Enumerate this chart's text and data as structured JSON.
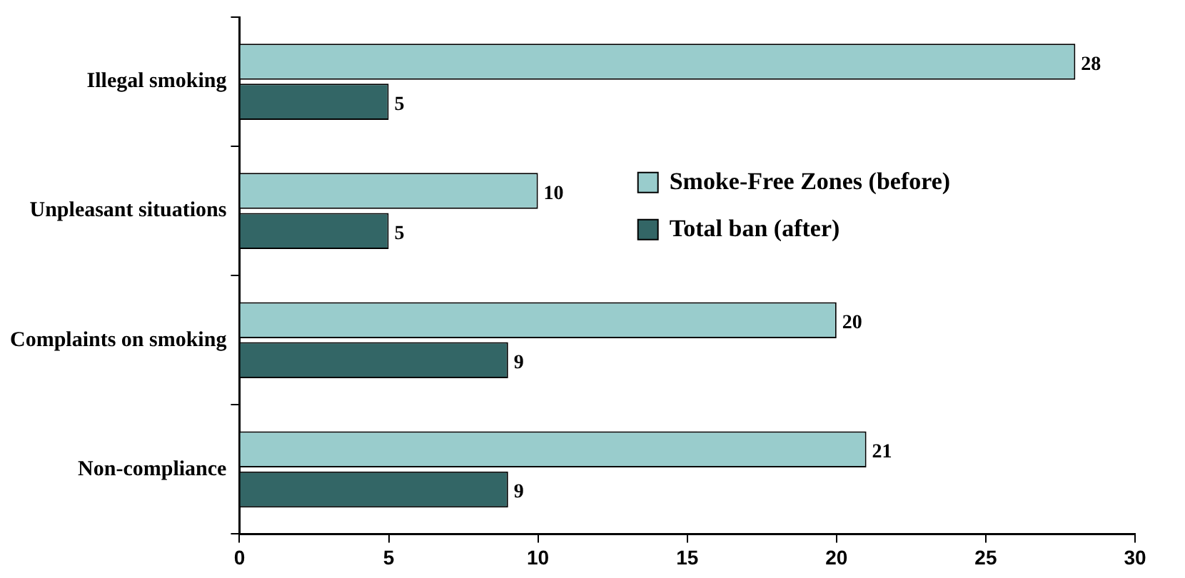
{
  "chart_data": {
    "type": "bar",
    "orientation": "horizontal",
    "categories": [
      "Illegal smoking",
      "Unpleasant situations",
      "Complaints on smoking",
      "Non-compliance"
    ],
    "series": [
      {
        "name": "Smoke-Free Zones (before)",
        "color": "#99cccc",
        "values": [
          28,
          10,
          20,
          21
        ]
      },
      {
        "name": "Total ban (after)",
        "color": "#336666",
        "values": [
          5,
          5,
          9,
          9
        ]
      }
    ],
    "xlim": [
      0,
      30
    ],
    "xticks": [
      0,
      5,
      10,
      15,
      20,
      25,
      30
    ],
    "grid": false,
    "legend": "top right",
    "data_labels": true
  }
}
